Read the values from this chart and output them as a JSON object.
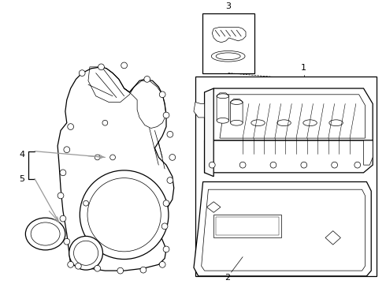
{
  "background_color": "#ffffff",
  "line_color": "#000000",
  "gray_color": "#999999",
  "figsize": [
    4.9,
    3.6
  ],
  "dpi": 100,
  "lw_main": 0.9,
  "lw_thin": 0.5,
  "lw_med": 0.7
}
